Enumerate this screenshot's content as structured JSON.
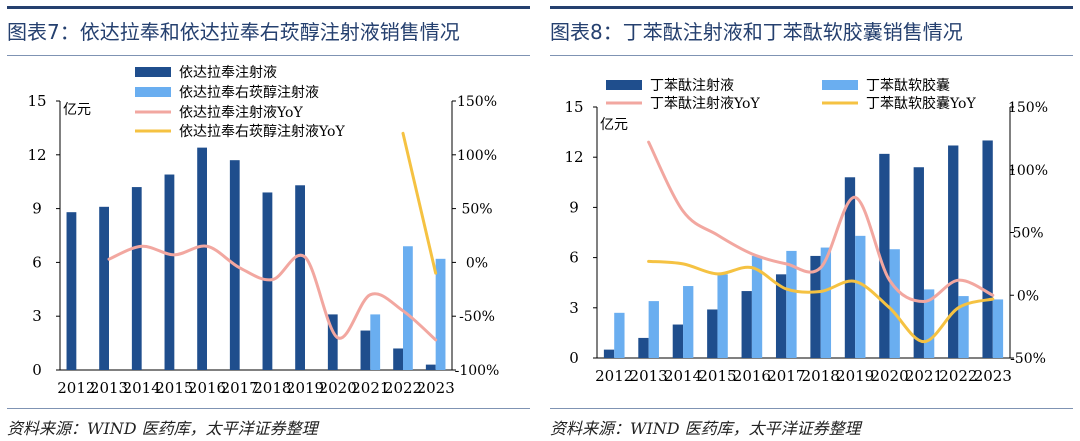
{
  "charts": [
    {
      "title": "图表7：依达拉奉和依达拉奉右莰醇注射液销售情况",
      "source": "资料来源：WIND 医药库，太平洋证券整理",
      "unit_label": "亿元",
      "colors": {
        "dark_bar": "#1f4e8d",
        "light_bar": "#6aaef0",
        "pink_line": "#f2a7a0",
        "yellow_line": "#f5c242"
      }
    },
    {
      "title": "图表8：丁苯酞注射液和丁苯酞软胶囊销售情况",
      "source": "资料来源：WIND 医药库，太平洋证券整理",
      "unit_label": "亿元",
      "colors": {
        "dark_bar": "#1f4e8d",
        "light_bar": "#6aaef0",
        "pink_line": "#f2a7a0",
        "yellow_line": "#f5c242"
      }
    }
  ],
  "chart_data": [
    {
      "type": "bar",
      "categories": [
        "2012",
        "2013",
        "2014",
        "2015",
        "2016",
        "2017",
        "2018",
        "2019",
        "2020",
        "2021",
        "2022",
        "2023"
      ],
      "ylim": [
        0,
        15
      ],
      "yticks": [
        "0",
        "3",
        "6",
        "9",
        "12",
        "15"
      ],
      "y2lim": [
        -100,
        150
      ],
      "y2ticks": [
        "-100%",
        "-50%",
        "0%",
        "50%",
        "100%",
        "150%"
      ],
      "legend_position": "top",
      "series": [
        {
          "name": "依达拉奉注射液",
          "kind": "bar",
          "axis": "left",
          "values": [
            8.8,
            9.1,
            10.2,
            10.9,
            12.4,
            11.7,
            9.9,
            10.3,
            3.1,
            2.2,
            1.2,
            0.3
          ]
        },
        {
          "name": "依达拉奉右莰醇注射液",
          "kind": "bar",
          "axis": "left",
          "values": [
            null,
            null,
            null,
            null,
            null,
            null,
            null,
            null,
            null,
            3.1,
            6.9,
            6.2
          ]
        },
        {
          "name": "依达拉奉注射液YoY",
          "kind": "line",
          "axis": "right",
          "values": [
            null,
            3,
            15,
            7,
            15,
            -5,
            -16,
            5,
            -70,
            -30,
            -45,
            -72
          ]
        },
        {
          "name": "依达拉奉右莰醇注射液YoY",
          "kind": "line",
          "axis": "right",
          "values": [
            null,
            null,
            null,
            null,
            null,
            null,
            null,
            null,
            null,
            null,
            120,
            -10
          ]
        }
      ]
    },
    {
      "type": "bar",
      "categories": [
        "2012",
        "2013",
        "2014",
        "2015",
        "2016",
        "2017",
        "2018",
        "2019",
        "2020",
        "2021",
        "2022",
        "2023"
      ],
      "ylim": [
        0,
        15
      ],
      "yticks": [
        "0",
        "3",
        "6",
        "9",
        "12",
        "15"
      ],
      "y2lim": [
        -50,
        150
      ],
      "y2ticks": [
        "-50%",
        "0%",
        "50%",
        "100%",
        "150%"
      ],
      "legend_position": "top",
      "series": [
        {
          "name": "丁苯酞注射液",
          "kind": "bar",
          "axis": "left",
          "values": [
            0.5,
            1.2,
            2.0,
            2.9,
            4.0,
            5.0,
            6.1,
            10.8,
            12.2,
            11.4,
            12.7,
            13.0
          ]
        },
        {
          "name": "丁苯酞软胶囊",
          "kind": "bar",
          "axis": "left",
          "values": [
            2.7,
            3.4,
            4.3,
            5.0,
            6.1,
            6.4,
            6.6,
            7.3,
            6.5,
            4.1,
            3.7,
            3.5
          ]
        },
        {
          "name": "丁苯酞注射液YoY",
          "kind": "line",
          "axis": "right",
          "values": [
            null,
            122,
            67,
            48,
            33,
            25,
            22,
            78,
            12,
            -5,
            12,
            0
          ]
        },
        {
          "name": "丁苯酞软胶囊YoY",
          "kind": "line",
          "axis": "right",
          "values": [
            null,
            27,
            25,
            17,
            22,
            5,
            3,
            11,
            -10,
            -37,
            -10,
            -3
          ]
        }
      ]
    }
  ]
}
